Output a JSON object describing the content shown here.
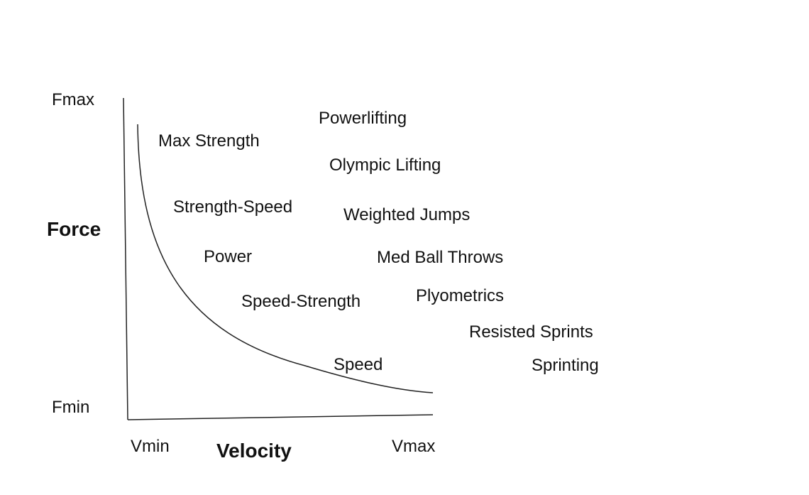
{
  "axes": {
    "y_title": "Force",
    "x_title": "Velocity",
    "y_max": "Fmax",
    "y_min": "Fmin",
    "x_min": "Vmin",
    "x_max": "Vmax"
  },
  "curve_zones": [
    "Max Strength",
    "Strength-Speed",
    "Power",
    "Speed-Strength",
    "Speed"
  ],
  "training_methods": [
    "Powerlifting",
    "Olympic Lifting",
    "Weighted Jumps",
    "Med Ball Throws",
    "Plyometrics",
    "Resisted Sprints",
    "Sprinting"
  ],
  "colors": {
    "line": "#222222",
    "text": "#111111",
    "background": "#ffffff"
  }
}
